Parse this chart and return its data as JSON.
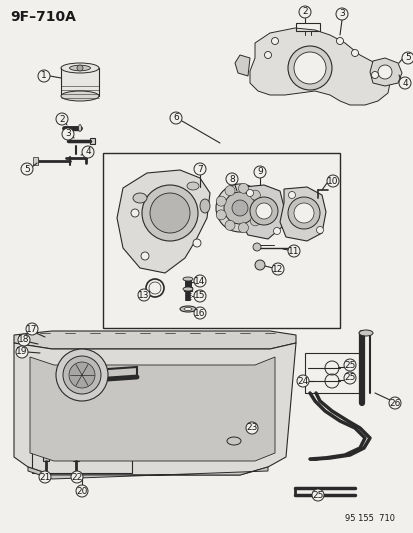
{
  "title": "9F–710A",
  "footer": "95 155  710",
  "bg_color": "#f2f0ed",
  "line_color": "#2a2a2a",
  "text_color": "#1a1a1a",
  "title_fontsize": 10,
  "label_fontsize": 6.5,
  "footer_fontsize": 6,
  "fig_width": 4.14,
  "fig_height": 5.33
}
